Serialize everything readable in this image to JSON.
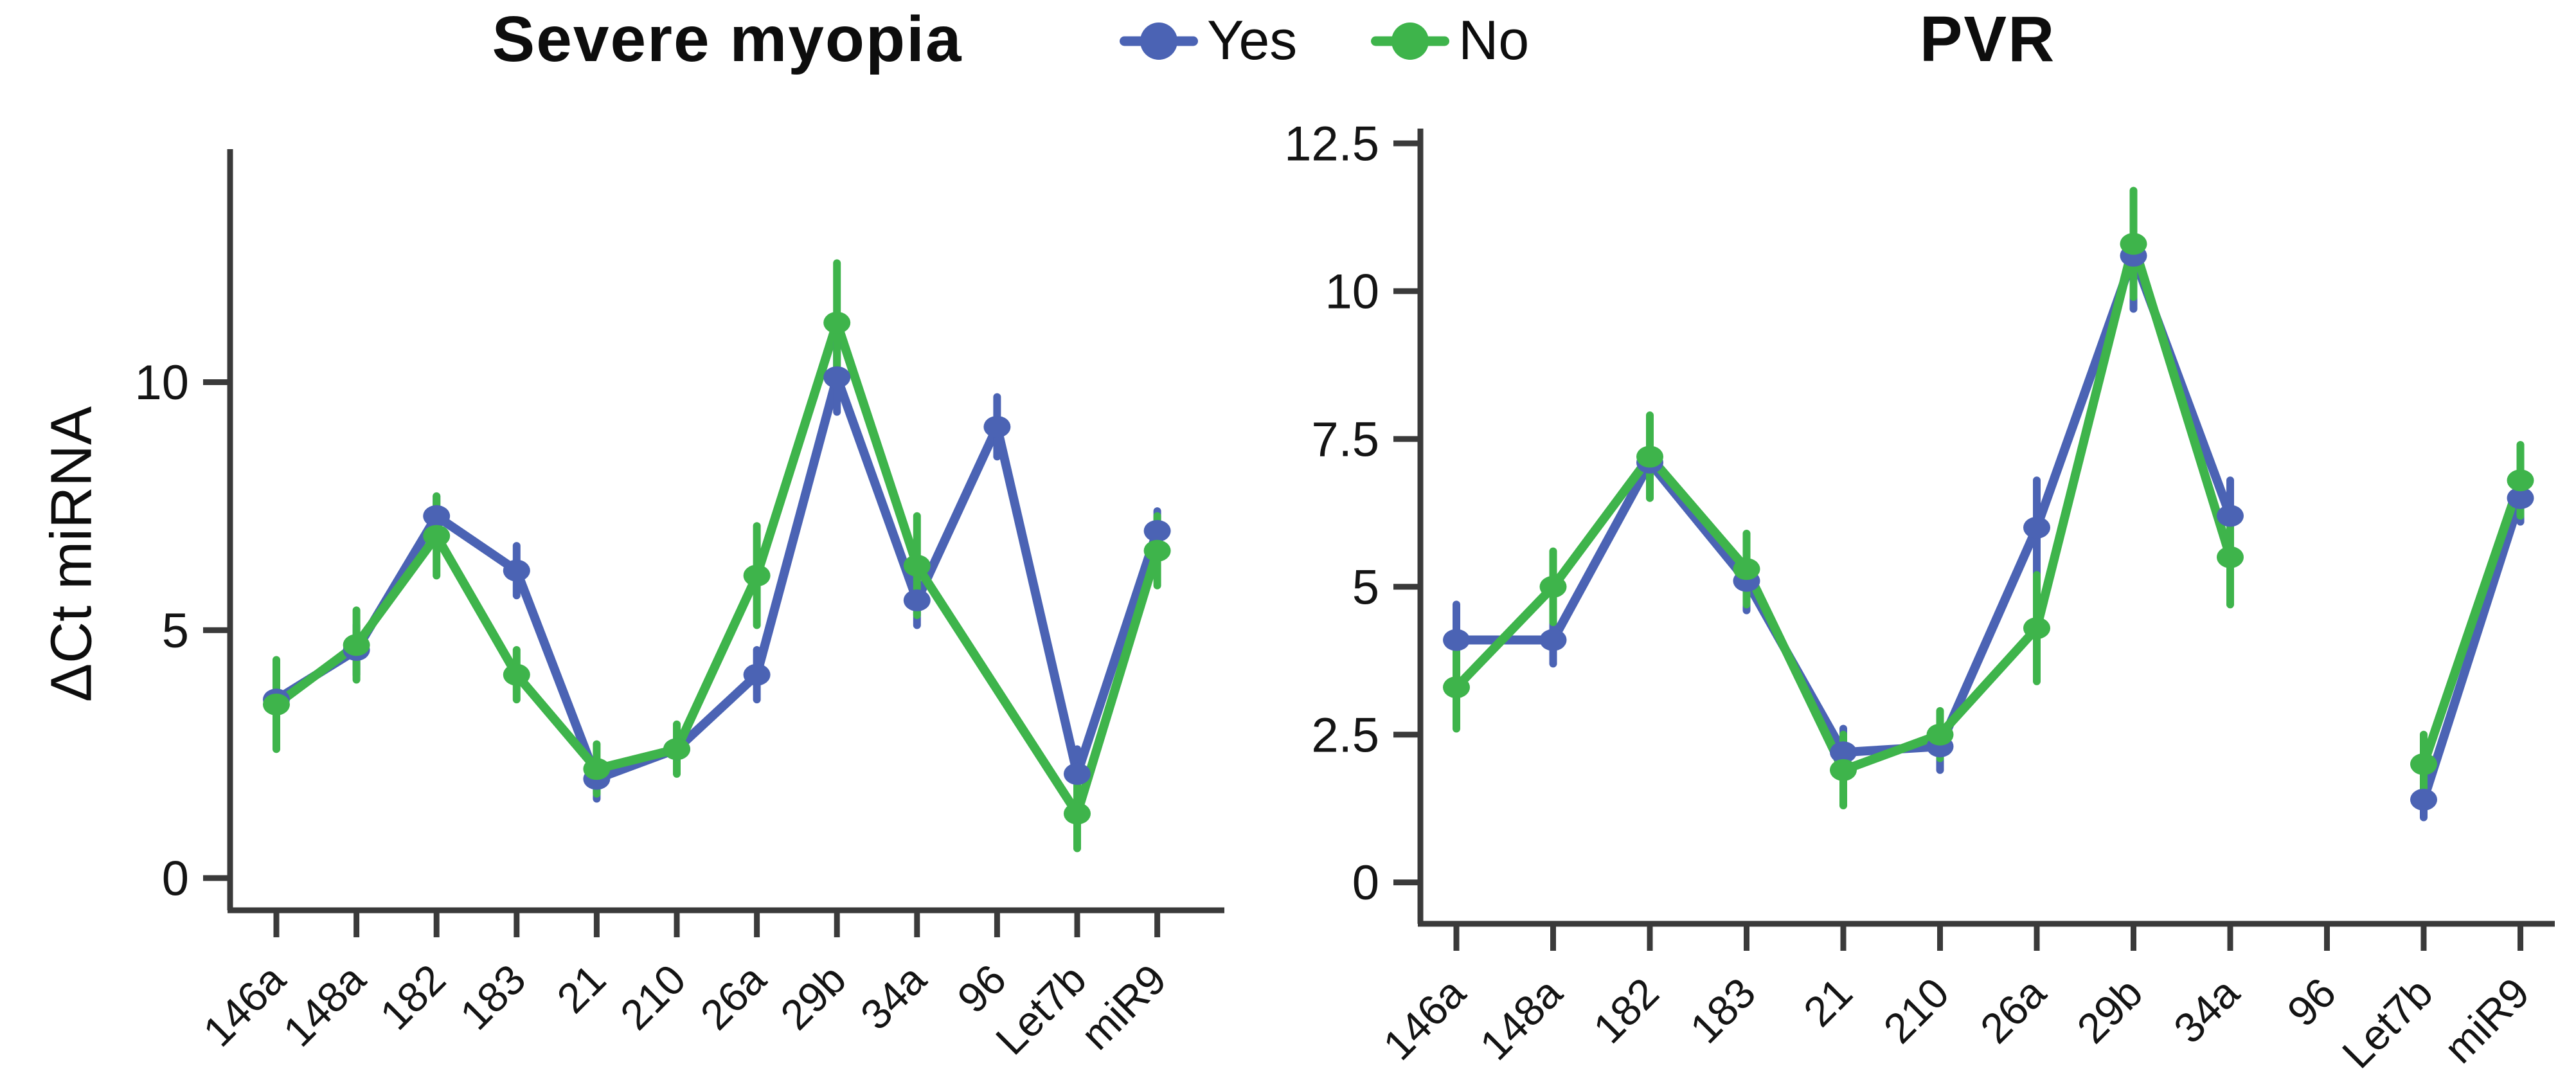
{
  "figure": {
    "y_axis_label": "ΔCt miRNA"
  },
  "legend": {
    "position": "top-center",
    "items": [
      {
        "label": "Yes",
        "color": "#4B63B4"
      },
      {
        "label": "No",
        "color": "#3EB44B"
      }
    ]
  },
  "chart_data": [
    {
      "type": "line",
      "title": "Severe myopia",
      "ylabel": "ΔCt miRNA",
      "xlabel": "",
      "categories": [
        "146a",
        "148a",
        "182",
        "183",
        "21",
        "210",
        "26a",
        "29b",
        "34a",
        "96",
        "Let7b",
        "miR9"
      ],
      "yticks": [
        0,
        5,
        10
      ],
      "ylim": [
        -0.65,
        14.7
      ],
      "grid": false,
      "series": [
        {
          "name": "Yes",
          "color": "#4B63B4",
          "connect_gaps": true,
          "values": [
            3.6,
            4.6,
            7.3,
            6.2,
            2.0,
            2.6,
            4.1,
            10.1,
            5.6,
            9.1,
            2.1,
            7.0
          ],
          "errors": [
            0.6,
            0.5,
            0.4,
            0.5,
            0.4,
            0.4,
            0.5,
            0.7,
            0.5,
            0.6,
            0.5,
            0.4
          ]
        },
        {
          "name": "No",
          "color": "#3EB44B",
          "connect_gaps": true,
          "values": [
            3.5,
            4.7,
            6.9,
            4.1,
            2.2,
            2.6,
            6.1,
            11.2,
            6.3,
            null,
            1.3,
            6.6
          ],
          "errors": [
            0.9,
            0.7,
            0.8,
            0.5,
            0.5,
            0.5,
            1.0,
            1.2,
            1.0,
            null,
            0.7,
            0.7
          ]
        }
      ]
    },
    {
      "type": "line",
      "title": "PVR",
      "ylabel": "",
      "xlabel": "",
      "categories": [
        "146a",
        "148a",
        "182",
        "183",
        "21",
        "210",
        "26a",
        "29b",
        "34a",
        "96",
        "Let7b",
        "miR9"
      ],
      "yticks": [
        0,
        2.5,
        5,
        7.5,
        10,
        12.5
      ],
      "ylim": [
        -0.7,
        12.75
      ],
      "grid": false,
      "series": [
        {
          "name": "Yes",
          "color": "#4B63B4",
          "connect_gaps": false,
          "values": [
            4.1,
            4.1,
            7.1,
            5.1,
            2.2,
            2.3,
            6.0,
            10.6,
            6.2,
            null,
            1.4,
            6.5
          ],
          "errors": [
            0.6,
            0.4,
            0.5,
            0.5,
            0.4,
            0.4,
            0.8,
            0.9,
            0.6,
            null,
            0.3,
            0.4
          ]
        },
        {
          "name": "No",
          "color": "#3EB44B",
          "connect_gaps": false,
          "values": [
            3.3,
            5.0,
            7.2,
            5.3,
            1.9,
            2.5,
            4.3,
            10.8,
            5.5,
            null,
            2.0,
            6.8
          ],
          "errors": [
            0.7,
            0.6,
            0.7,
            0.6,
            0.6,
            0.4,
            0.9,
            0.9,
            0.8,
            null,
            0.5,
            0.6
          ]
        }
      ]
    }
  ]
}
